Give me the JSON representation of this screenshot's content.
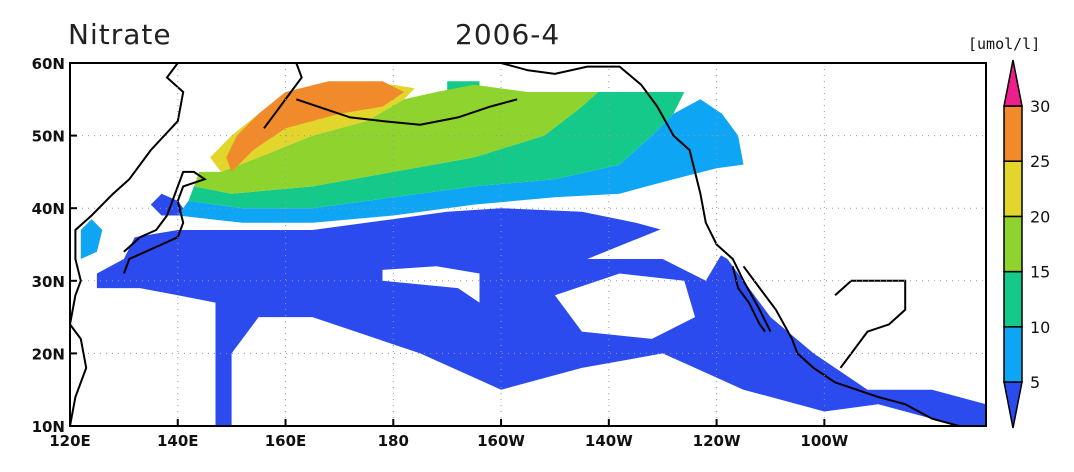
{
  "title_left": "Nitrate",
  "title_right": "2006-4",
  "units": "[umol/l]",
  "map": {
    "lon_range": [
      120,
      290
    ],
    "lat_range": [
      10,
      60
    ],
    "x_ticks": [
      {
        "lon": 120,
        "label": "120E"
      },
      {
        "lon": 140,
        "label": "140E"
      },
      {
        "lon": 160,
        "label": "160E"
      },
      {
        "lon": 180,
        "label": "180"
      },
      {
        "lon": 200,
        "label": "160W"
      },
      {
        "lon": 220,
        "label": "140W"
      },
      {
        "lon": 240,
        "label": "120W"
      },
      {
        "lon": 260,
        "label": "100W"
      }
    ],
    "y_ticks": [
      {
        "lat": 10,
        "label": "10N"
      },
      {
        "lat": 20,
        "label": "20N"
      },
      {
        "lat": 30,
        "label": "30N"
      },
      {
        "lat": 40,
        "label": "40N"
      },
      {
        "lat": 50,
        "label": "50N"
      },
      {
        "lat": 60,
        "label": "60N"
      }
    ],
    "grid": "dotted"
  },
  "colorbar": {
    "levels": [
      5,
      10,
      15,
      20,
      25,
      30
    ],
    "labels": [
      "5",
      "10",
      "15",
      "20",
      "25",
      "30"
    ],
    "colors": [
      "#2b4bef",
      "#0ea5f5",
      "#14c98a",
      "#8fd32e",
      "#e2d52c",
      "#f08a2b",
      "#ec1f8c"
    ]
  },
  "regions": [
    {
      "name": "nitrate-0-5",
      "color": "#2b4bef",
      "points": [
        [
          147,
          10
        ],
        [
          150,
          10
        ],
        [
          150,
          20
        ],
        [
          155,
          25
        ],
        [
          165,
          25
        ],
        [
          185,
          20
        ],
        [
          200,
          15
        ],
        [
          215,
          18
        ],
        [
          230,
          20
        ],
        [
          245,
          15
        ],
        [
          260,
          12
        ],
        [
          270,
          13
        ],
        [
          285,
          10
        ],
        [
          290,
          10
        ],
        [
          290,
          13
        ],
        [
          280,
          15
        ],
        [
          268,
          15
        ],
        [
          258,
          20
        ],
        [
          250,
          25
        ],
        [
          245,
          30
        ],
        [
          242,
          33
        ],
        [
          235,
          36
        ],
        [
          225,
          38
        ],
        [
          215,
          39.5
        ],
        [
          200,
          40
        ],
        [
          190,
          39.5
        ],
        [
          180,
          38.5
        ],
        [
          165,
          37
        ],
        [
          152,
          37
        ],
        [
          140,
          37
        ],
        [
          132,
          36
        ],
        [
          130,
          33
        ],
        [
          125,
          31
        ],
        [
          125,
          29
        ],
        [
          133,
          29
        ],
        [
          140,
          28
        ],
        [
          147,
          27
        ]
      ]
    },
    {
      "name": "nitrate-0-5-north",
      "color": "#2b4bef",
      "points": [
        [
          137,
          39
        ],
        [
          142,
          39
        ],
        [
          140,
          41
        ],
        [
          137,
          42
        ],
        [
          135,
          40.5
        ]
      ]
    },
    {
      "name": "nitrate-5-10",
      "color": "#0ea5f5",
      "points": [
        [
          140,
          39
        ],
        [
          152,
          38
        ],
        [
          165,
          38
        ],
        [
          180,
          39
        ],
        [
          195,
          40.5
        ],
        [
          210,
          41.5
        ],
        [
          222,
          42
        ],
        [
          232,
          44
        ],
        [
          240,
          45.5
        ],
        [
          245,
          46
        ],
        [
          244,
          50
        ],
        [
          241,
          53
        ],
        [
          237,
          55
        ],
        [
          232,
          53
        ],
        [
          228,
          50
        ],
        [
          222,
          46
        ],
        [
          210,
          44
        ],
        [
          195,
          43
        ],
        [
          180,
          41.5
        ],
        [
          165,
          40
        ],
        [
          152,
          40
        ],
        [
          142,
          41
        ]
      ]
    },
    {
      "name": "nitrate-5-10-japan-sea",
      "color": "#0ea5f5",
      "points": [
        [
          122,
          33
        ],
        [
          125,
          34
        ],
        [
          126,
          37
        ],
        [
          124,
          38.5
        ],
        [
          122,
          37
        ]
      ]
    },
    {
      "name": "nitrate-10-15",
      "color": "#14c98a",
      "points": [
        [
          142,
          41
        ],
        [
          152,
          40
        ],
        [
          165,
          40
        ],
        [
          180,
          41.5
        ],
        [
          195,
          43
        ],
        [
          210,
          44
        ],
        [
          222,
          46
        ],
        [
          228,
          50
        ],
        [
          232,
          53
        ],
        [
          234,
          56
        ],
        [
          225,
          56
        ],
        [
          218,
          56
        ],
        [
          215,
          54
        ],
        [
          208,
          50
        ],
        [
          195,
          47
        ],
        [
          180,
          45
        ],
        [
          165,
          43
        ],
        [
          150,
          42
        ],
        [
          143,
          43
        ]
      ]
    },
    {
      "name": "nitrate-10-15-bering",
      "color": "#14c98a",
      "points": [
        [
          190,
          56
        ],
        [
          196,
          56
        ],
        [
          196,
          57.5
        ],
        [
          190,
          57.5
        ]
      ]
    },
    {
      "name": "nitrate-15-20",
      "color": "#8fd32e",
      "points": [
        [
          143,
          43
        ],
        [
          150,
          42
        ],
        [
          165,
          43
        ],
        [
          180,
          45
        ],
        [
          195,
          47
        ],
        [
          208,
          50
        ],
        [
          215,
          54
        ],
        [
          218,
          56
        ],
        [
          205,
          56
        ],
        [
          195,
          57
        ],
        [
          188,
          56
        ],
        [
          182,
          55
        ],
        [
          175,
          52
        ],
        [
          165,
          50
        ],
        [
          155,
          47
        ],
        [
          148,
          45
        ],
        [
          144,
          45
        ]
      ]
    },
    {
      "name": "nitrate-20-25",
      "color": "#e2d52c",
      "points": [
        [
          148,
          45
        ],
        [
          155,
          47
        ],
        [
          165,
          50
        ],
        [
          175,
          52
        ],
        [
          182,
          55
        ],
        [
          184,
          56.5
        ],
        [
          180,
          57
        ],
        [
          170,
          57
        ],
        [
          162,
          56
        ],
        [
          155,
          53
        ],
        [
          150,
          50
        ],
        [
          146,
          47
        ]
      ]
    },
    {
      "name": "nitrate-25-30",
      "color": "#f08a2b",
      "points": [
        [
          150,
          45
        ],
        [
          154,
          48
        ],
        [
          160,
          51
        ],
        [
          170,
          53
        ],
        [
          178,
          54
        ],
        [
          182,
          56
        ],
        [
          178,
          57.5
        ],
        [
          168,
          57.5
        ],
        [
          160,
          56
        ],
        [
          155,
          53
        ],
        [
          151,
          50
        ],
        [
          149,
          47
        ]
      ]
    }
  ],
  "holes": [
    {
      "name": "gap-central",
      "points": [
        [
          178,
          30
        ],
        [
          192,
          29
        ],
        [
          196,
          27
        ],
        [
          196,
          31
        ],
        [
          188,
          32
        ],
        [
          178,
          31.5
        ]
      ]
    },
    {
      "name": "gap-east",
      "points": [
        [
          210,
          28
        ],
        [
          222,
          31
        ],
        [
          234,
          30
        ],
        [
          236,
          25
        ],
        [
          228,
          22
        ],
        [
          215,
          23
        ]
      ]
    },
    {
      "name": "gap-northeast",
      "points": [
        [
          216,
          33
        ],
        [
          226,
          36
        ],
        [
          236,
          39
        ],
        [
          240,
          39
        ],
        [
          242,
          35
        ],
        [
          238,
          30
        ],
        [
          230,
          33
        ]
      ]
    }
  ],
  "coastlines": [
    {
      "name": "asia-coast",
      "points": [
        [
          120,
          10
        ],
        [
          121,
          14
        ],
        [
          123,
          18
        ],
        [
          122,
          22
        ],
        [
          120,
          24
        ],
        [
          121,
          28
        ],
        [
          122,
          30
        ],
        [
          121,
          33
        ],
        [
          121,
          37
        ],
        [
          124,
          39
        ],
        [
          128,
          42
        ],
        [
          131,
          44
        ],
        [
          135,
          48
        ],
        [
          140,
          52
        ],
        [
          141,
          56
        ],
        [
          138,
          58
        ],
        [
          140,
          60
        ]
      ]
    },
    {
      "name": "japan-coast",
      "points": [
        [
          130,
          31
        ],
        [
          131,
          33
        ],
        [
          134,
          34
        ],
        [
          137,
          35
        ],
        [
          140,
          36
        ],
        [
          141,
          38
        ],
        [
          140,
          41
        ],
        [
          141,
          43
        ],
        [
          145,
          44
        ],
        [
          143,
          45
        ],
        [
          141,
          45
        ],
        [
          140,
          43
        ],
        [
          138,
          39
        ],
        [
          136,
          37
        ],
        [
          133,
          36
        ],
        [
          130,
          34
        ]
      ]
    },
    {
      "name": "kamchatka-coast",
      "points": [
        [
          156,
          51
        ],
        [
          158,
          53
        ],
        [
          161,
          56
        ],
        [
          163,
          58
        ],
        [
          162,
          60
        ]
      ]
    },
    {
      "name": "alaska-coast",
      "points": [
        [
          200,
          60
        ],
        [
          205,
          59
        ],
        [
          210,
          58.5
        ],
        [
          216,
          59.5
        ],
        [
          222,
          59.5
        ],
        [
          226,
          57
        ],
        [
          229,
          54
        ],
        [
          232,
          50
        ],
        [
          235,
          48
        ],
        [
          236,
          45
        ],
        [
          237,
          42
        ],
        [
          238,
          38
        ],
        [
          240,
          35
        ],
        [
          243,
          33
        ],
        [
          245,
          30
        ],
        [
          248,
          26
        ],
        [
          250,
          23
        ]
      ]
    },
    {
      "name": "mexico-coast",
      "points": [
        [
          245,
          32
        ],
        [
          248,
          29
        ],
        [
          251,
          26
        ],
        [
          254,
          22
        ],
        [
          255,
          20
        ],
        [
          258,
          18
        ],
        [
          262,
          16
        ],
        [
          266,
          15
        ],
        [
          270,
          14
        ],
        [
          275,
          13
        ],
        [
          280,
          11
        ],
        [
          285,
          10
        ]
      ]
    },
    {
      "name": "baja-coast",
      "points": [
        [
          243,
          32
        ],
        [
          244,
          29
        ],
        [
          246,
          27
        ],
        [
          248,
          24
        ],
        [
          249,
          23
        ]
      ]
    },
    {
      "name": "aleutians",
      "points": [
        [
          162,
          55
        ],
        [
          168,
          53.5
        ],
        [
          172,
          52.5
        ],
        [
          178,
          52
        ],
        [
          185,
          51.5
        ],
        [
          192,
          52.5
        ],
        [
          198,
          54
        ],
        [
          203,
          55
        ]
      ]
    },
    {
      "name": "gulf-coast",
      "points": [
        [
          263,
          18
        ],
        [
          266,
          21
        ],
        [
          268,
          23
        ],
        [
          272,
          24
        ],
        [
          275,
          26
        ],
        [
          275,
          30
        ],
        [
          270,
          30
        ],
        [
          265,
          30
        ],
        [
          262,
          28
        ]
      ]
    }
  ]
}
